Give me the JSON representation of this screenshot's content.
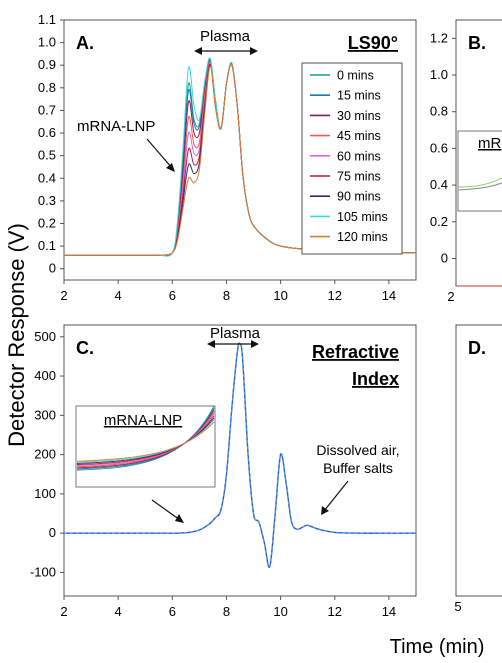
{
  "figure": {
    "ylabel": "Detector Response (V)",
    "xlabel": "Time (min)"
  },
  "panels": {
    "A": {
      "letter": "A.",
      "detector": "LS90°",
      "plasma_label": "Plasma",
      "annotation": "mRNA-LNP"
    },
    "B": {
      "letter": "B.",
      "inset_label_fragment": "mR"
    },
    "C": {
      "letter": "C.",
      "detector_line1": "Refractive",
      "detector_line2": "Index",
      "plasma_label": "Plasma",
      "inset_label": "mRNA-LNP",
      "annotation_line1": "Dissolved air,",
      "annotation_line2": "Buffer salts"
    },
    "D": {
      "letter": "D."
    }
  },
  "chart_data": [
    {
      "panel": "A",
      "type": "line",
      "title": "LS90°",
      "xlabel": "Time (min)",
      "ylabel": "Detector Response (V)",
      "xlim": [
        2,
        15
      ],
      "ylim": [
        -0.05,
        1.1
      ],
      "xticks": [
        "2",
        "4",
        "6",
        "8",
        "10",
        "12",
        "14"
      ],
      "yticks": [
        "0",
        "0.1",
        "0.2",
        "0.3",
        "0.4",
        "0.5",
        "0.6",
        "0.7",
        "0.8",
        "0.9",
        "1.0",
        "1.1"
      ],
      "legend_position": "top-right",
      "x": [
        2,
        3,
        4,
        5,
        5.5,
        6.0,
        6.2,
        6.4,
        6.6,
        6.8,
        7.0,
        7.2,
        7.4,
        7.6,
        7.8,
        8.0,
        8.2,
        8.4,
        8.6,
        8.8,
        9.0,
        9.5,
        10,
        11,
        12,
        13,
        14,
        15
      ],
      "series": [
        {
          "name": "0 mins",
          "color": "#1a9e8a",
          "values": [
            0.06,
            0.06,
            0.06,
            0.06,
            0.06,
            0.07,
            0.2,
            0.5,
            0.82,
            0.66,
            0.64,
            0.82,
            0.93,
            0.74,
            0.62,
            0.82,
            0.91,
            0.72,
            0.42,
            0.26,
            0.19,
            0.13,
            0.1,
            0.085,
            0.08,
            0.075,
            0.072,
            0.07
          ]
        },
        {
          "name": "15 mins",
          "color": "#1f78b4",
          "values": [
            0.06,
            0.06,
            0.06,
            0.06,
            0.06,
            0.07,
            0.19,
            0.47,
            0.79,
            0.64,
            0.63,
            0.81,
            0.925,
            0.74,
            0.62,
            0.82,
            0.905,
            0.72,
            0.42,
            0.26,
            0.19,
            0.13,
            0.1,
            0.085,
            0.08,
            0.075,
            0.072,
            0.07
          ]
        },
        {
          "name": "30 mins",
          "color": "#8b1a6b",
          "values": [
            0.06,
            0.06,
            0.06,
            0.06,
            0.06,
            0.07,
            0.18,
            0.43,
            0.74,
            0.6,
            0.6,
            0.79,
            0.92,
            0.73,
            0.62,
            0.82,
            0.905,
            0.72,
            0.42,
            0.26,
            0.19,
            0.13,
            0.1,
            0.085,
            0.08,
            0.075,
            0.072,
            0.07
          ]
        },
        {
          "name": "45 mins",
          "color": "#e8604c",
          "values": [
            0.06,
            0.06,
            0.06,
            0.06,
            0.06,
            0.07,
            0.17,
            0.39,
            0.67,
            0.55,
            0.56,
            0.77,
            0.915,
            0.73,
            0.62,
            0.82,
            0.9,
            0.72,
            0.42,
            0.26,
            0.19,
            0.13,
            0.1,
            0.085,
            0.08,
            0.075,
            0.072,
            0.07
          ]
        },
        {
          "name": "60 mins",
          "color": "#d36ad6",
          "values": [
            0.06,
            0.06,
            0.06,
            0.06,
            0.06,
            0.07,
            0.16,
            0.36,
            0.6,
            0.51,
            0.53,
            0.75,
            0.91,
            0.72,
            0.62,
            0.82,
            0.9,
            0.72,
            0.42,
            0.26,
            0.19,
            0.13,
            0.1,
            0.085,
            0.08,
            0.075,
            0.072,
            0.07
          ]
        },
        {
          "name": "75 mins",
          "color": "#c0143c",
          "values": [
            0.06,
            0.06,
            0.06,
            0.06,
            0.06,
            0.07,
            0.15,
            0.33,
            0.53,
            0.46,
            0.5,
            0.73,
            0.905,
            0.72,
            0.62,
            0.82,
            0.9,
            0.72,
            0.42,
            0.26,
            0.19,
            0.13,
            0.1,
            0.085,
            0.08,
            0.075,
            0.072,
            0.07
          ]
        },
        {
          "name": "90 mins",
          "color": "#2d2d6e",
          "values": [
            0.06,
            0.06,
            0.06,
            0.06,
            0.06,
            0.07,
            0.14,
            0.3,
            0.46,
            0.42,
            0.47,
            0.71,
            0.9,
            0.71,
            0.62,
            0.82,
            0.9,
            0.72,
            0.42,
            0.26,
            0.19,
            0.13,
            0.1,
            0.085,
            0.08,
            0.075,
            0.072,
            0.07
          ]
        },
        {
          "name": "105 mins",
          "color": "#3fd6d6",
          "values": [
            0.06,
            0.06,
            0.06,
            0.06,
            0.06,
            0.07,
            0.22,
            0.54,
            0.89,
            0.72,
            0.66,
            0.83,
            0.93,
            0.74,
            0.62,
            0.82,
            0.91,
            0.72,
            0.42,
            0.26,
            0.19,
            0.13,
            0.1,
            0.085,
            0.08,
            0.075,
            0.072,
            0.07
          ]
        },
        {
          "name": "120 mins",
          "color": "#e07a2e",
          "values": [
            0.06,
            0.06,
            0.06,
            0.06,
            0.06,
            0.07,
            0.13,
            0.27,
            0.4,
            0.38,
            0.44,
            0.69,
            0.895,
            0.71,
            0.62,
            0.82,
            0.9,
            0.72,
            0.42,
            0.26,
            0.19,
            0.13,
            0.1,
            0.085,
            0.08,
            0.075,
            0.072,
            0.07
          ]
        }
      ]
    },
    {
      "panel": "B",
      "type": "line",
      "ylim": [
        -0.15,
        1.3
      ],
      "yticks": [
        "0",
        "0.2",
        "0.4",
        "0.6",
        "0.8",
        "1.0",
        "1.2"
      ],
      "xticks": [
        "2"
      ],
      "partial": true
    },
    {
      "panel": "C",
      "type": "line",
      "title": "Refractive Index",
      "xlabel": "Time (min)",
      "ylabel": "Detector Response (V)",
      "xlim": [
        2,
        15
      ],
      "ylim": [
        -160,
        530
      ],
      "xticks": [
        "2",
        "4",
        "6",
        "8",
        "10",
        "12",
        "14"
      ],
      "yticks": [
        "-100",
        "0",
        "100",
        "200",
        "300",
        "400",
        "500"
      ],
      "x": [
        2,
        4,
        6,
        6.6,
        7.0,
        7.4,
        7.6,
        7.8,
        8.0,
        8.2,
        8.4,
        8.5,
        8.6,
        8.8,
        9.0,
        9.2,
        9.4,
        9.6,
        9.8,
        10.0,
        10.2,
        10.4,
        10.6,
        10.8,
        11.0,
        11.4,
        12,
        13,
        14,
        15
      ],
      "series": [
        {
          "color": "#1f5fc4",
          "values": [
            0,
            0,
            0,
            2,
            8,
            25,
            40,
            60,
            150,
            320,
            460,
            482,
            440,
            200,
            50,
            28,
            -25,
            -85,
            50,
            200,
            130,
            30,
            10,
            15,
            20,
            10,
            2,
            0,
            0,
            0
          ]
        }
      ]
    },
    {
      "panel": "D",
      "type": "line",
      "xticks": [
        "5"
      ],
      "partial": true
    }
  ]
}
